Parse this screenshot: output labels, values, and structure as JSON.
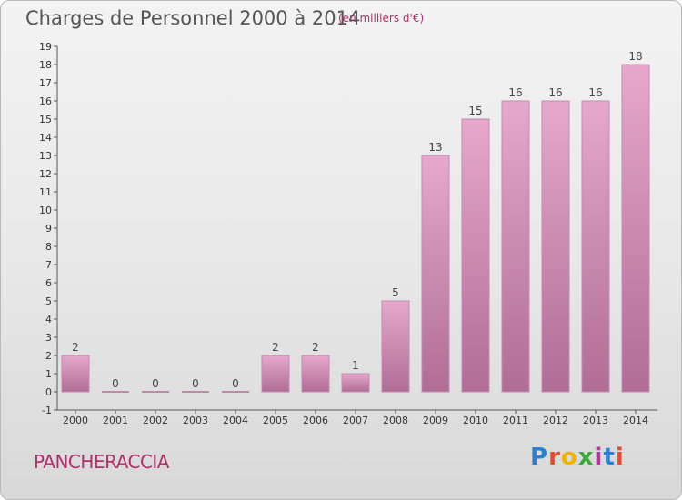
{
  "title": "Charges de Personnel 2000 à 2014",
  "subtitle": "(en milliers d'€)",
  "commune": "PANCHERACCIA",
  "logo": {
    "text": "Proxiti",
    "colors": [
      "#2f7fd0",
      "#e84a2a",
      "#f2b300",
      "#3aa83a",
      "#b43a9a",
      "#2f7fd0",
      "#e84a2a"
    ]
  },
  "chart_data": {
    "type": "bar",
    "categories": [
      "2000",
      "2001",
      "2002",
      "2003",
      "2004",
      "2005",
      "2006",
      "2007",
      "2008",
      "2009",
      "2010",
      "2011",
      "2012",
      "2013",
      "2014"
    ],
    "values": [
      2,
      0,
      0,
      0,
      0,
      2,
      2,
      1,
      5,
      13,
      15,
      16,
      16,
      16,
      18
    ],
    "data_labels": [
      "2",
      "0",
      "0",
      "0",
      "0",
      "2",
      "2",
      "1",
      "5",
      "13",
      "15",
      "16",
      "16",
      "16",
      "18"
    ],
    "ylim": [
      -1,
      19
    ],
    "yticks": [
      -1,
      0,
      1,
      2,
      3,
      4,
      5,
      6,
      7,
      8,
      9,
      10,
      11,
      12,
      13,
      14,
      15,
      16,
      17,
      18,
      19
    ],
    "bar_color_top": "#e6a8cb",
    "bar_color_bottom": "#b06d96",
    "grid": false
  }
}
